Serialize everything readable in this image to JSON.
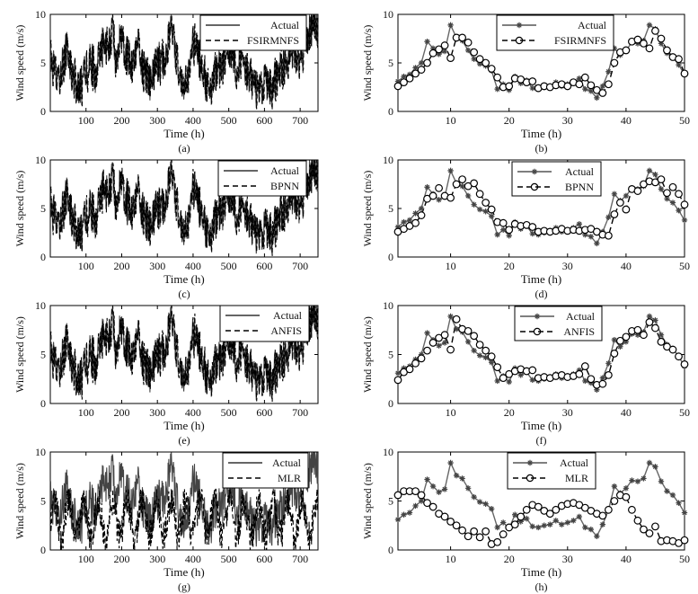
{
  "chart_data": [
    {
      "type": "line",
      "panel": "(a)",
      "xlabel": "Time (h)",
      "ylabel": "Wind speed (m/s)",
      "xlim": [
        0,
        750
      ],
      "ylim": [
        0,
        10
      ],
      "xticks": [
        "100",
        "200",
        "300",
        "400",
        "500",
        "600",
        "700"
      ],
      "yticks": [
        "0",
        "5",
        "10"
      ],
      "legend_position": "top-right",
      "series": [
        {
          "name": "Actual",
          "style": "solid"
        },
        {
          "name": "FSIRMNFS",
          "style": "dashed"
        }
      ]
    },
    {
      "type": "line",
      "panel": "(b)",
      "xlabel": "Time (h)",
      "ylabel": "Wind speed (m/s)",
      "xlim": [
        1,
        50
      ],
      "ylim": [
        0,
        10
      ],
      "xticks": [
        "10",
        "20",
        "30",
        "40",
        "50"
      ],
      "yticks": [
        "0",
        "5",
        "10"
      ],
      "legend_position": "top-right",
      "x": [
        1,
        2,
        3,
        4,
        5,
        6,
        7,
        8,
        9,
        10,
        11,
        12,
        13,
        14,
        15,
        16,
        17,
        18,
        19,
        20,
        21,
        22,
        23,
        24,
        25,
        26,
        27,
        28,
        29,
        30,
        31,
        32,
        33,
        34,
        35,
        36,
        37,
        38,
        39,
        40,
        41,
        42,
        43,
        44,
        45,
        46,
        47,
        48,
        49,
        50
      ],
      "series": [
        {
          "name": "Actual",
          "marker": "star",
          "values": [
            3.1,
            3.6,
            3.8,
            4.5,
            5.0,
            7.2,
            6.5,
            5.9,
            6.2,
            8.9,
            7.6,
            7.3,
            6.3,
            5.4,
            4.9,
            4.7,
            4.2,
            2.3,
            2.8,
            2.2,
            3.6,
            2.9,
            3.2,
            2.4,
            2.3,
            2.5,
            2.6,
            3.0,
            2.6,
            2.8,
            3.0,
            3.4,
            2.3,
            2.1,
            1.4,
            2.6,
            4.1,
            6.5,
            5.8,
            6.3,
            7.1,
            7.0,
            7.3,
            8.9,
            8.5,
            7.0,
            6.0,
            5.6,
            4.8,
            3.8
          ]
        },
        {
          "name": "FSIRMNFS",
          "marker": "circle",
          "values": [
            2.6,
            3.0,
            3.4,
            3.9,
            4.3,
            5.0,
            6.0,
            6.4,
            6.8,
            5.5,
            7.6,
            7.6,
            7.1,
            6.1,
            5.4,
            5.0,
            4.4,
            3.5,
            2.5,
            2.6,
            3.4,
            3.3,
            3.0,
            3.1,
            2.4,
            2.6,
            2.5,
            2.7,
            2.8,
            2.6,
            3.0,
            2.8,
            3.5,
            2.7,
            2.2,
            1.9,
            2.8,
            5.0,
            6.1,
            6.3,
            7.2,
            7.4,
            7.0,
            6.5,
            8.3,
            7.5,
            6.3,
            5.6,
            5.4,
            3.9
          ]
        }
      ]
    },
    {
      "type": "line",
      "panel": "(c)",
      "xlabel": "Time (h)",
      "ylabel": "Wind speed (m/s)",
      "xlim": [
        0,
        750
      ],
      "ylim": [
        0,
        10
      ],
      "xticks": [
        "100",
        "200",
        "300",
        "400",
        "500",
        "600",
        "700"
      ],
      "yticks": [
        "0",
        "5",
        "10"
      ],
      "legend_position": "top-right",
      "series": [
        {
          "name": "Actual",
          "style": "solid"
        },
        {
          "name": "BPNN",
          "style": "dashed"
        }
      ]
    },
    {
      "type": "line",
      "panel": "(d)",
      "xlabel": "Time (h)",
      "ylabel": "Wind speed (m/s)",
      "xlim": [
        1,
        50
      ],
      "ylim": [
        0,
        10
      ],
      "xticks": [
        "10",
        "20",
        "30",
        "40",
        "50"
      ],
      "yticks": [
        "0",
        "5",
        "10"
      ],
      "legend_position": "top-right",
      "x": [
        1,
        2,
        3,
        4,
        5,
        6,
        7,
        8,
        9,
        10,
        11,
        12,
        13,
        14,
        15,
        16,
        17,
        18,
        19,
        20,
        21,
        22,
        23,
        24,
        25,
        26,
        27,
        28,
        29,
        30,
        31,
        32,
        33,
        34,
        35,
        36,
        37,
        38,
        39,
        40,
        41,
        42,
        43,
        44,
        45,
        46,
        47,
        48,
        49,
        50
      ],
      "series": [
        {
          "name": "Actual",
          "marker": "star",
          "values": [
            3.1,
            3.6,
            3.8,
            4.5,
            5.0,
            7.2,
            6.5,
            5.9,
            6.2,
            8.9,
            7.6,
            7.3,
            6.3,
            5.4,
            4.9,
            4.7,
            4.2,
            2.3,
            2.8,
            2.2,
            3.6,
            2.9,
            3.2,
            2.4,
            2.3,
            2.5,
            2.6,
            3.0,
            2.6,
            2.8,
            3.0,
            3.4,
            2.3,
            2.1,
            1.4,
            2.6,
            4.1,
            6.5,
            5.8,
            6.3,
            7.1,
            7.0,
            7.3,
            8.9,
            8.5,
            7.0,
            6.0,
            5.6,
            4.8,
            3.8
          ]
        },
        {
          "name": "BPNN",
          "marker": "circle",
          "values": [
            2.6,
            2.9,
            3.2,
            3.5,
            4.3,
            6.0,
            6.3,
            7.1,
            6.3,
            6.1,
            7.5,
            8.0,
            7.3,
            7.6,
            6.5,
            5.6,
            4.9,
            3.6,
            3.5,
            2.8,
            3.4,
            3.2,
            3.3,
            3.1,
            2.6,
            2.7,
            2.6,
            2.7,
            2.9,
            2.7,
            2.8,
            2.7,
            2.8,
            2.9,
            2.6,
            2.3,
            2.2,
            4.4,
            5.6,
            4.9,
            7.0,
            6.8,
            7.5,
            7.8,
            7.7,
            8.0,
            6.6,
            7.2,
            6.5,
            5.4
          ]
        }
      ]
    },
    {
      "type": "line",
      "panel": "(e)",
      "xlabel": "Time (h)",
      "ylabel": "Wind speed (m/s)",
      "xlim": [
        0,
        750
      ],
      "ylim": [
        0,
        10
      ],
      "xticks": [
        "100",
        "200",
        "300",
        "400",
        "500",
        "600",
        "700"
      ],
      "yticks": [
        "0",
        "5",
        "10"
      ],
      "legend_position": "top-right",
      "series": [
        {
          "name": "Actual",
          "style": "solid"
        },
        {
          "name": "ANFIS",
          "style": "dashed"
        }
      ]
    },
    {
      "type": "line",
      "panel": "(f)",
      "xlabel": "Time (h)",
      "ylabel": "Wind speed (m/s)",
      "xlim": [
        1,
        50
      ],
      "ylim": [
        0,
        10
      ],
      "xticks": [
        "10",
        "20",
        "30",
        "40",
        "50"
      ],
      "yticks": [
        "0",
        "5",
        "10"
      ],
      "legend_position": "top-right",
      "x": [
        1,
        2,
        3,
        4,
        5,
        6,
        7,
        8,
        9,
        10,
        11,
        12,
        13,
        14,
        15,
        16,
        17,
        18,
        19,
        20,
        21,
        22,
        23,
        24,
        25,
        26,
        27,
        28,
        29,
        30,
        31,
        32,
        33,
        34,
        35,
        36,
        37,
        38,
        39,
        40,
        41,
        42,
        43,
        44,
        45,
        46,
        47,
        48,
        49,
        50
      ],
      "series": [
        {
          "name": "Actual",
          "marker": "star",
          "values": [
            3.1,
            3.6,
            3.8,
            4.5,
            5.0,
            7.2,
            6.5,
            5.9,
            6.2,
            8.9,
            7.6,
            7.3,
            6.3,
            5.4,
            4.9,
            4.7,
            4.2,
            2.3,
            2.8,
            2.2,
            3.6,
            2.9,
            3.2,
            2.4,
            2.3,
            2.5,
            2.6,
            3.0,
            2.6,
            2.8,
            3.0,
            3.4,
            2.3,
            2.1,
            1.4,
            2.6,
            4.1,
            6.5,
            5.8,
            6.3,
            7.1,
            7.0,
            7.3,
            8.9,
            8.5,
            7.0,
            6.0,
            5.6,
            4.8,
            3.8
          ]
        },
        {
          "name": "ANFIS",
          "marker": "circle",
          "values": [
            2.4,
            3.2,
            3.5,
            4.1,
            4.6,
            5.4,
            6.2,
            6.7,
            7.0,
            5.5,
            8.6,
            7.6,
            7.4,
            6.9,
            6.0,
            5.4,
            4.8,
            3.7,
            2.6,
            3.0,
            3.3,
            3.5,
            3.3,
            3.4,
            2.6,
            2.7,
            2.6,
            2.8,
            2.9,
            2.7,
            2.8,
            3.0,
            3.8,
            2.5,
            1.9,
            2.0,
            2.9,
            5.1,
            6.4,
            6.8,
            7.4,
            7.5,
            7.0,
            8.3,
            7.7,
            6.3,
            5.8,
            5.5,
            4.8,
            4.0
          ]
        }
      ]
    },
    {
      "type": "line",
      "panel": "(g)",
      "xlabel": "Time (h)",
      "ylabel": "Wind speed (m/s)",
      "xlim": [
        0,
        750
      ],
      "ylim": [
        0,
        10
      ],
      "xticks": [
        "100",
        "200",
        "300",
        "400",
        "500",
        "600",
        "700"
      ],
      "yticks": [
        "0",
        "5",
        "10"
      ],
      "legend_position": "top-right",
      "series": [
        {
          "name": "Actual",
          "style": "solid"
        },
        {
          "name": "MLR",
          "style": "dashed"
        }
      ]
    },
    {
      "type": "line",
      "panel": "(h)",
      "xlabel": "Time (h)",
      "ylabel": "Wind speed (m/s)",
      "xlim": [
        1,
        50
      ],
      "ylim": [
        0,
        10
      ],
      "xticks": [
        "10",
        "20",
        "30",
        "40",
        "50"
      ],
      "yticks": [
        "0",
        "5",
        "10"
      ],
      "legend_position": "top-right",
      "x": [
        1,
        2,
        3,
        4,
        5,
        6,
        7,
        8,
        9,
        10,
        11,
        12,
        13,
        14,
        15,
        16,
        17,
        18,
        19,
        20,
        21,
        22,
        23,
        24,
        25,
        26,
        27,
        28,
        29,
        30,
        31,
        32,
        33,
        34,
        35,
        36,
        37,
        38,
        39,
        40,
        41,
        42,
        43,
        44,
        45,
        46,
        47,
        48,
        49,
        50
      ],
      "series": [
        {
          "name": "Actual",
          "marker": "star",
          "values": [
            3.1,
            3.6,
            3.8,
            4.5,
            5.0,
            7.2,
            6.5,
            5.9,
            6.2,
            8.9,
            7.6,
            7.3,
            6.3,
            5.4,
            4.9,
            4.7,
            4.2,
            2.3,
            2.8,
            2.2,
            3.6,
            2.9,
            3.2,
            2.4,
            2.3,
            2.5,
            2.6,
            3.0,
            2.6,
            2.8,
            3.0,
            3.4,
            2.3,
            2.1,
            1.4,
            2.6,
            4.1,
            6.5,
            5.8,
            6.3,
            7.1,
            7.0,
            7.3,
            8.9,
            8.5,
            7.0,
            6.0,
            5.6,
            4.8,
            3.8
          ]
        },
        {
          "name": "MLR",
          "marker": "circle",
          "values": [
            5.6,
            6.0,
            6.0,
            6.0,
            5.6,
            4.8,
            4.4,
            3.7,
            3.4,
            2.9,
            2.5,
            2.0,
            1.4,
            1.9,
            1.3,
            1.9,
            0.6,
            0.8,
            1.6,
            2.3,
            2.6,
            3.4,
            4.1,
            4.6,
            4.4,
            4.0,
            3.7,
            4.1,
            4.5,
            4.7,
            4.8,
            4.6,
            4.3,
            4.0,
            3.7,
            3.5,
            4.1,
            5.0,
            5.6,
            5.4,
            4.1,
            3.0,
            2.1,
            1.7,
            2.4,
            0.9,
            1.0,
            0.9,
            0.7,
            1.0
          ]
        }
      ]
    }
  ]
}
